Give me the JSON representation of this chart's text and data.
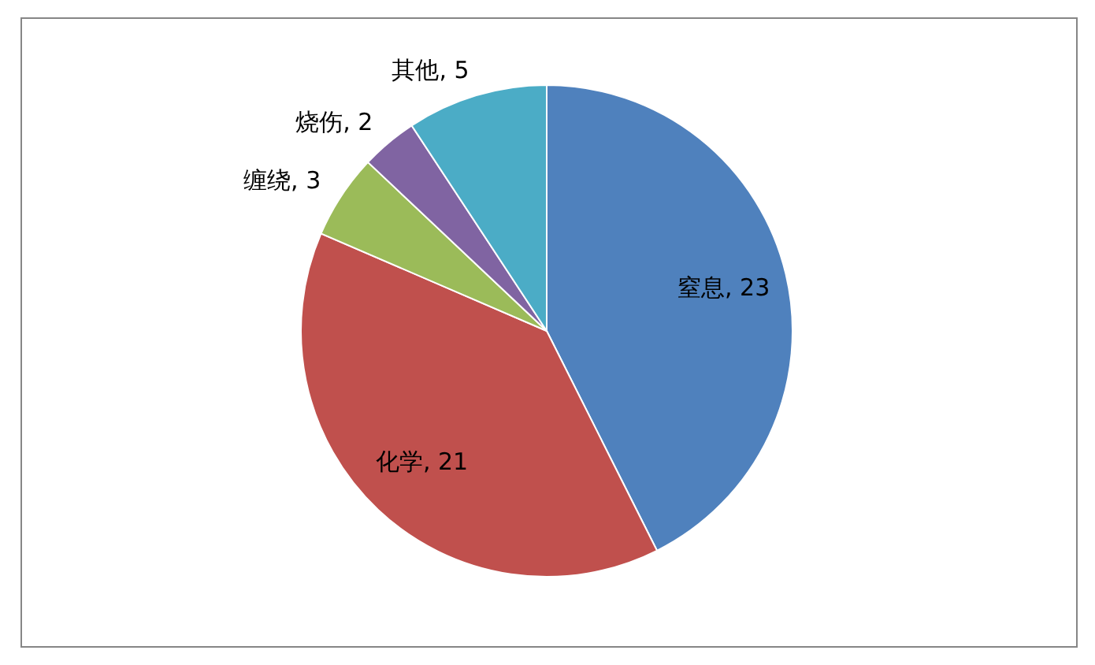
{
  "chart_data": {
    "type": "pie",
    "categories": [
      "窒息",
      "化学",
      "缠绕",
      "烧伤",
      "其他"
    ],
    "values": [
      23,
      21,
      3,
      2,
      5
    ],
    "colors": [
      "#4f81bd",
      "#c0504d",
      "#9bbb59",
      "#8064a2",
      "#4bacc6"
    ],
    "value_labels": [
      ", 23",
      ", 21",
      ", 3",
      ", 2",
      ", 5"
    ]
  }
}
